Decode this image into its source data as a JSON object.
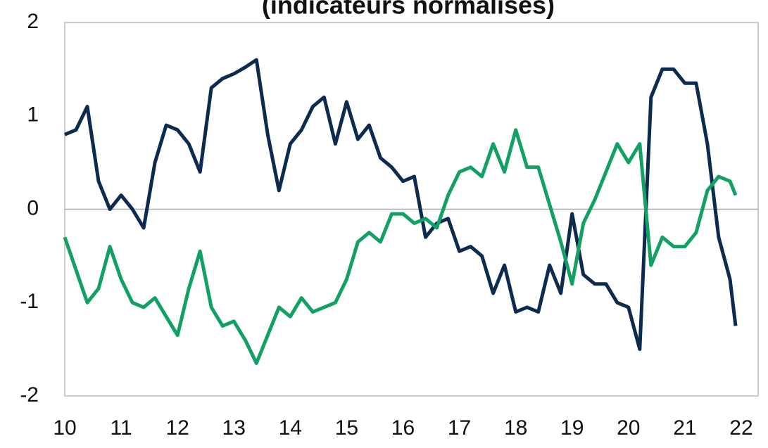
{
  "chart_data": {
    "type": "line",
    "title": "(indicateurs normalisés)",
    "x": [
      10.0,
      10.2,
      10.4,
      10.6,
      10.8,
      11.0,
      11.2,
      11.4,
      11.6,
      11.8,
      12.0,
      12.2,
      12.4,
      12.6,
      12.8,
      13.0,
      13.2,
      13.4,
      13.6,
      13.8,
      14.0,
      14.2,
      14.4,
      14.6,
      14.8,
      15.0,
      15.2,
      15.4,
      15.6,
      15.8,
      16.0,
      16.2,
      16.4,
      16.6,
      16.8,
      17.0,
      17.2,
      17.4,
      17.6,
      17.8,
      18.0,
      18.2,
      18.4,
      18.6,
      18.8,
      19.0,
      19.2,
      19.4,
      19.6,
      19.8,
      20.0,
      20.2,
      20.4,
      20.6,
      20.8,
      21.0,
      21.2,
      21.4,
      21.6,
      21.8,
      21.9
    ],
    "series": [
      {
        "color": "#0d2b4e",
        "values": [
          0.8,
          0.85,
          1.1,
          0.3,
          0.0,
          0.15,
          0.0,
          -0.2,
          0.5,
          0.9,
          0.85,
          0.7,
          0.4,
          1.3,
          1.4,
          1.45,
          1.52,
          1.6,
          0.8,
          0.2,
          0.7,
          0.85,
          1.1,
          1.2,
          0.7,
          1.15,
          0.75,
          0.9,
          0.55,
          0.45,
          0.3,
          0.35,
          -0.3,
          -0.15,
          -0.1,
          -0.45,
          -0.4,
          -0.5,
          -0.9,
          -0.6,
          -1.1,
          -1.05,
          -1.1,
          -0.6,
          -0.9,
          -0.05,
          -0.7,
          -0.8,
          -0.8,
          -1.0,
          -1.05,
          -1.5,
          1.2,
          1.5,
          1.5,
          1.35,
          1.35,
          0.7,
          -0.3,
          -0.75,
          -1.25
        ]
      },
      {
        "color": "#12a064",
        "values": [
          -0.3,
          -0.65,
          -1.0,
          -0.85,
          -0.4,
          -0.75,
          -1.0,
          -1.05,
          -0.95,
          -1.15,
          -1.35,
          -0.85,
          -0.45,
          -1.05,
          -1.25,
          -1.2,
          -1.4,
          -1.65,
          -1.35,
          -1.05,
          -1.15,
          -0.95,
          -1.1,
          -1.05,
          -1.0,
          -0.75,
          -0.35,
          -0.25,
          -0.35,
          -0.05,
          -0.05,
          -0.15,
          -0.1,
          -0.2,
          0.15,
          0.4,
          0.45,
          0.35,
          0.7,
          0.4,
          0.85,
          0.45,
          0.45,
          0.05,
          -0.35,
          -0.8,
          -0.15,
          0.1,
          0.4,
          0.7,
          0.5,
          0.7,
          -0.6,
          -0.3,
          -0.4,
          -0.4,
          -0.25,
          0.2,
          0.35,
          0.3,
          0.15
        ]
      }
    ],
    "xlim": [
      10,
      22.3
    ],
    "xticks": [
      10,
      11,
      12,
      13,
      14,
      15,
      16,
      17,
      18,
      19,
      20,
      21,
      22
    ],
    "ylim": [
      -2,
      2
    ],
    "yticks": [
      -2,
      -1,
      0,
      1,
      2
    ],
    "zero_line": true
  }
}
